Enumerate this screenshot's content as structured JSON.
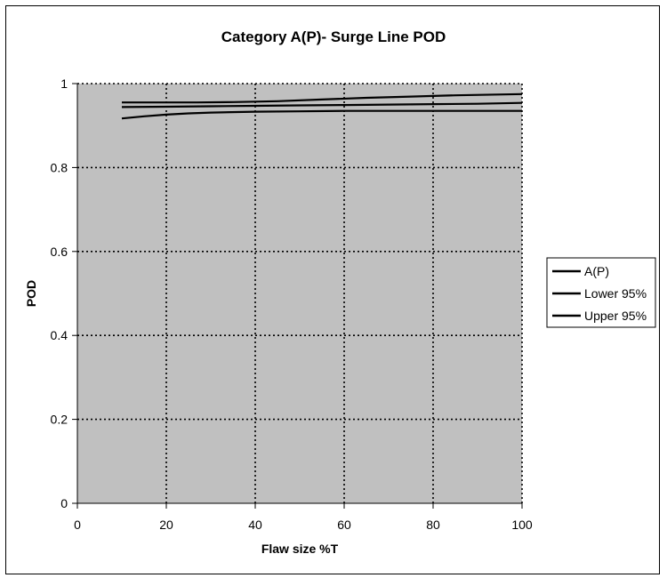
{
  "chart_data": {
    "type": "line",
    "title": "Category A(P)- Surge Line POD",
    "xlabel": "Flaw size %T",
    "ylabel": "POD",
    "xlim": [
      0,
      100
    ],
    "ylim": [
      0,
      1
    ],
    "xticks": [
      "0",
      "20",
      "40",
      "60",
      "80",
      "100"
    ],
    "yticks": [
      "0",
      "0.2",
      "0.4",
      "0.6",
      "0.8",
      "1"
    ],
    "grid": true,
    "legend_position": "right",
    "plot_background": "#c0c0c0",
    "line_color": "#000000",
    "series": [
      {
        "name": "A(P)",
        "x": [
          10,
          20,
          30,
          40,
          50,
          60,
          70,
          80,
          90,
          100
        ],
        "y": [
          0.944,
          0.945,
          0.946,
          0.947,
          0.948,
          0.949,
          0.95,
          0.951,
          0.952,
          0.954
        ]
      },
      {
        "name": "Lower 95%",
        "x": [
          10,
          15,
          20,
          25,
          30,
          40,
          50,
          60,
          70,
          80,
          90,
          100
        ],
        "y": [
          0.917,
          0.922,
          0.926,
          0.929,
          0.931,
          0.933,
          0.934,
          0.935,
          0.935,
          0.935,
          0.935,
          0.935
        ]
      },
      {
        "name": "Upper 95%",
        "x": [
          10,
          20,
          27,
          35,
          45,
          55,
          65,
          75,
          85,
          100
        ],
        "y": [
          0.955,
          0.955,
          0.955,
          0.956,
          0.958,
          0.962,
          0.966,
          0.969,
          0.972,
          0.975
        ]
      }
    ]
  }
}
